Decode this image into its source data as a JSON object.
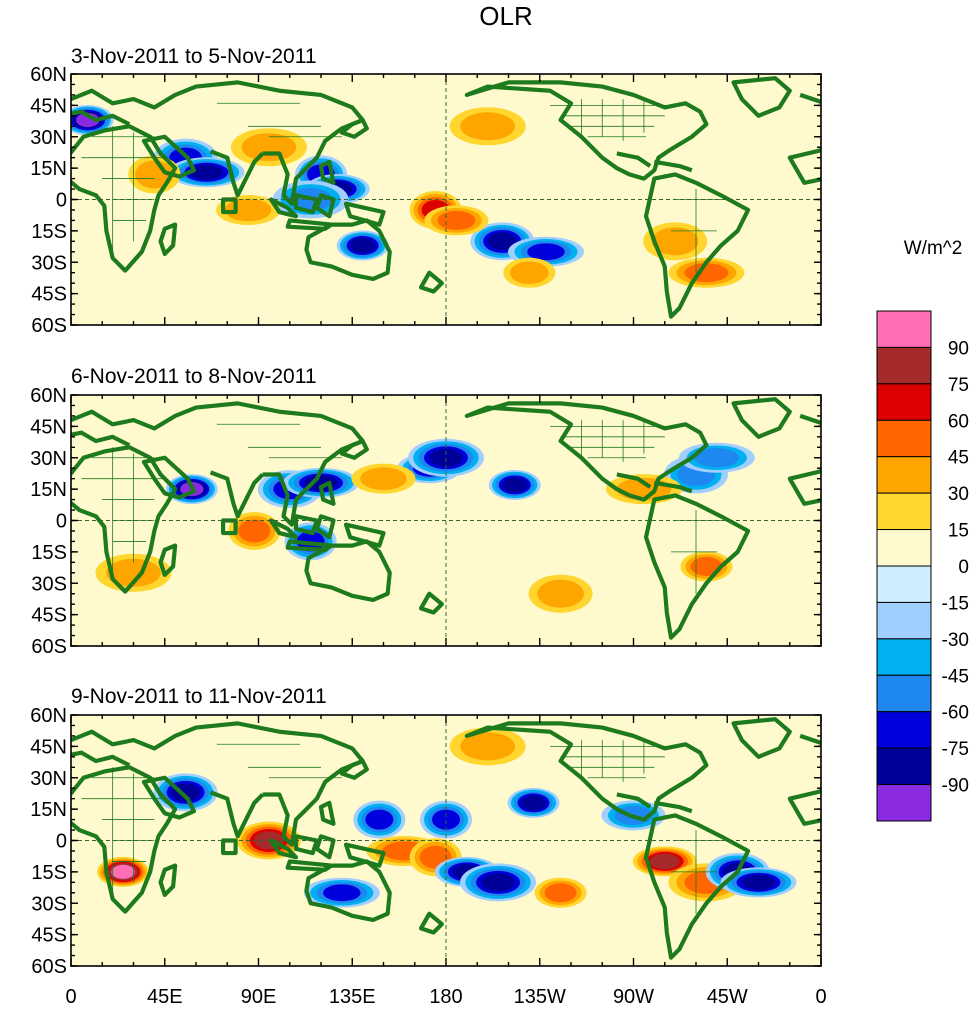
{
  "chart_data": {
    "type": "heatmap",
    "title": "OLR",
    "units_label": "W/m^2",
    "x_ticks": [
      "0",
      "45E",
      "90E",
      "135E",
      "180",
      "135W",
      "90W",
      "45W",
      "0"
    ],
    "y_ticks": [
      "60N",
      "45N",
      "30N",
      "15N",
      "0",
      "15S",
      "30S",
      "45S",
      "60S"
    ],
    "xlim": [
      0,
      360
    ],
    "ylim": [
      -60,
      60
    ],
    "colorbar": {
      "levels": [
        "90",
        "75",
        "60",
        "45",
        "30",
        "15",
        "0",
        "-15",
        "-30",
        "-45",
        "-60",
        "-75",
        "-90"
      ],
      "colors": [
        "#ff6eb4",
        "#a52a2a",
        "#dd0000",
        "#ff6600",
        "#ffa500",
        "#ffd52e",
        "#fffacd",
        "#cceeff",
        "#a0cfff",
        "#00b0f0",
        "#1e87f0",
        "#0000dd",
        "#000099",
        "#8a2be2"
      ]
    },
    "panels": [
      {
        "period": "3-Nov-2011 to 5-Nov-2011",
        "anomalies": [
          {
            "lon": 8,
            "lat": 38,
            "v": -90
          },
          {
            "lon": 55,
            "lat": 20,
            "v": -60
          },
          {
            "lon": 65,
            "lat": 13,
            "v": -75
          },
          {
            "lon": 120,
            "lat": 12,
            "v": -60
          },
          {
            "lon": 128,
            "lat": 5,
            "v": -75
          },
          {
            "lon": 115,
            "lat": 0,
            "v": -45
          },
          {
            "lon": 140,
            "lat": -22,
            "v": -75
          },
          {
            "lon": 207,
            "lat": -20,
            "v": -75
          },
          {
            "lon": 228,
            "lat": -25,
            "v": -60
          },
          {
            "lon": 175,
            "lat": -5,
            "v": 60
          },
          {
            "lon": 185,
            "lat": -10,
            "v": 45
          },
          {
            "lon": 200,
            "lat": 35,
            "v": 30
          },
          {
            "lon": 220,
            "lat": -35,
            "v": 30
          },
          {
            "lon": 290,
            "lat": -20,
            "v": 30
          },
          {
            "lon": 305,
            "lat": -35,
            "v": 45
          },
          {
            "lon": 40,
            "lat": 12,
            "v": 30
          },
          {
            "lon": 85,
            "lat": -5,
            "v": 30
          },
          {
            "lon": 95,
            "lat": 25,
            "v": 30
          }
        ]
      },
      {
        "period": "6-Nov-2011 to 8-Nov-2011",
        "anomalies": [
          {
            "lon": 58,
            "lat": 15,
            "v": -90
          },
          {
            "lon": 105,
            "lat": 15,
            "v": -60
          },
          {
            "lon": 120,
            "lat": 18,
            "v": -75
          },
          {
            "lon": 115,
            "lat": -10,
            "v": -60
          },
          {
            "lon": 172,
            "lat": 25,
            "v": -60
          },
          {
            "lon": 180,
            "lat": 30,
            "v": -75
          },
          {
            "lon": 213,
            "lat": 17,
            "v": -75
          },
          {
            "lon": 300,
            "lat": 22,
            "v": -45
          },
          {
            "lon": 310,
            "lat": 30,
            "v": -45
          },
          {
            "lon": 88,
            "lat": -5,
            "v": 45
          },
          {
            "lon": 150,
            "lat": 20,
            "v": 30
          },
          {
            "lon": 30,
            "lat": -25,
            "v": 30
          },
          {
            "lon": 305,
            "lat": -22,
            "v": 45
          },
          {
            "lon": 235,
            "lat": -35,
            "v": 30
          },
          {
            "lon": 275,
            "lat": 15,
            "v": 30
          }
        ]
      },
      {
        "period": "9-Nov-2011 to 11-Nov-2011",
        "anomalies": [
          {
            "lon": 25,
            "lat": -15,
            "v": 90
          },
          {
            "lon": 95,
            "lat": 0,
            "v": 75
          },
          {
            "lon": 160,
            "lat": -5,
            "v": 45
          },
          {
            "lon": 175,
            "lat": -8,
            "v": 45
          },
          {
            "lon": 285,
            "lat": -10,
            "v": 75
          },
          {
            "lon": 305,
            "lat": -20,
            "v": 45
          },
          {
            "lon": 235,
            "lat": -25,
            "v": 45
          },
          {
            "lon": 55,
            "lat": 23,
            "v": -75
          },
          {
            "lon": 130,
            "lat": -25,
            "v": -60
          },
          {
            "lon": 180,
            "lat": 10,
            "v": -60
          },
          {
            "lon": 190,
            "lat": -15,
            "v": -75
          },
          {
            "lon": 205,
            "lat": -20,
            "v": -75
          },
          {
            "lon": 222,
            "lat": 18,
            "v": -75
          },
          {
            "lon": 320,
            "lat": -15,
            "v": -75
          },
          {
            "lon": 330,
            "lat": -20,
            "v": -75
          },
          {
            "lon": 148,
            "lat": 10,
            "v": -60
          },
          {
            "lon": 270,
            "lat": 12,
            "v": -45
          },
          {
            "lon": 200,
            "lat": 45,
            "v": 30
          }
        ]
      }
    ]
  }
}
